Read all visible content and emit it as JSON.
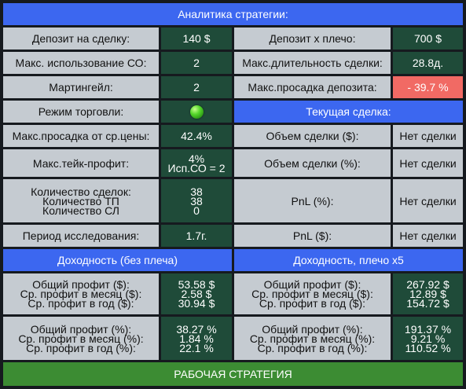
{
  "header": {
    "title": "Аналитика стратегии:"
  },
  "rows": {
    "deposit_label": "Депозит на сделку:",
    "deposit_value": "140 $",
    "deposit_lev_label": "Депозит x плечо:",
    "deposit_lev_value": "700 $",
    "max_co_label": "Макс. использование СО:",
    "max_co_value": "2",
    "max_duration_label": "Макс.длительность сделки:",
    "max_duration_value": "28.8д.",
    "martingale_label": "Мартингейл:",
    "martingale_value": "2",
    "max_dd_deposit_label": "Макс.просадка депозита:",
    "max_dd_deposit_value": "- 39.7 %",
    "mode_label": "Режим торговли:",
    "mode_status": "active",
    "current_deal_header": "Текущая сделка:",
    "max_dd_price_label": "Макс.просадка от ср.цены:",
    "max_dd_price_value": "42.4%",
    "deal_volume_usd_label": "Объем сделки ($):",
    "deal_volume_usd_value": "Нет сделки",
    "max_tp_label": "Макс.тейк-профит:",
    "max_tp_value_1": "4%",
    "max_tp_value_2": "Исп.СО = 2",
    "deal_volume_pct_label": "Объем сделки (%):",
    "deal_volume_pct_value": "Нет сделки",
    "count_labels": [
      "Количество сделок:",
      "Количество ТП",
      "Количество СЛ"
    ],
    "count_values": [
      "38",
      "38",
      "0"
    ],
    "pnl_pct_label": "PnL (%):",
    "pnl_pct_value": "Нет сделки",
    "period_label": "Период исследования:",
    "period_value": "1.7г.",
    "pnl_usd_label": "PnL ($):",
    "pnl_usd_value": "Нет сделки"
  },
  "yield_no_leverage": {
    "header": "Доходность (без плеча)",
    "usd_labels": [
      "Общий профит ($):",
      "Ср. профит в месяц ($):",
      "Ср. профит в год ($):"
    ],
    "usd_values": [
      "53.58 $",
      "2.58 $",
      "30.94 $"
    ],
    "pct_labels": [
      "Общий профит (%):",
      "Ср. профит в месяц (%):",
      "Ср. профит в год (%):"
    ],
    "pct_values": [
      "38.27 %",
      "1.84 %",
      "22.1 %"
    ]
  },
  "yield_leverage": {
    "header": "Доходность, плечо x5",
    "usd_labels": [
      "Общий профит ($):",
      "Ср. профит в месяц ($):",
      "Ср. профит в год ($):"
    ],
    "usd_values": [
      "267.92 $",
      "12.89 $",
      "154.72 $"
    ],
    "pct_labels": [
      "Общий профит (%):",
      "Ср. профит в месяц (%):",
      "Ср. профит в год (%):"
    ],
    "pct_values": [
      "191.37 %",
      "9.21 %",
      "110.52 %"
    ]
  },
  "footer": {
    "status": "РАБОЧАЯ СТРАТЕГИЯ"
  },
  "colors": {
    "header_blue": "#3c67f0",
    "label_gray": "#c5cbd1",
    "value_green": "#1f4b39",
    "alert_red": "#f16a64",
    "status_green": "#3c8c33",
    "indicator": "green-circle-icon"
  }
}
